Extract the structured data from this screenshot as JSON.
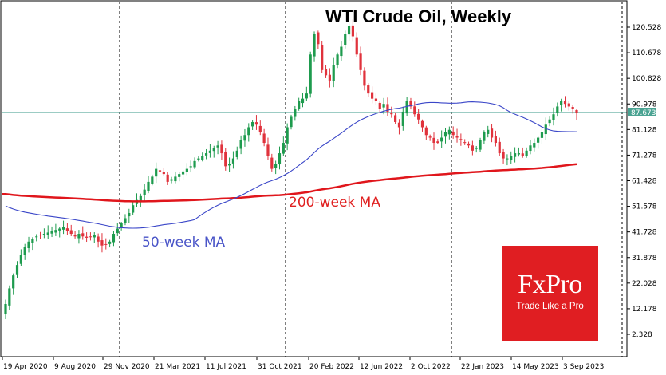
{
  "chart_data": {
    "type": "candlestick",
    "title": "WTI Crude Oil, Weekly",
    "ylim": [
      -2,
      129
    ],
    "y_ticks": [
      "120.528",
      "110.678",
      "100.828",
      "90.978",
      "81.128",
      "71.278",
      "61.428",
      "51.578",
      "41.728",
      "31.878",
      "22.028",
      "12.178",
      "2.328"
    ],
    "x_ticks": [
      "19 Apr 2020",
      "9 Aug 2020",
      "29 Nov 2020",
      "21 Mar 2021",
      "11 Jul 2021",
      "31 Oct 2021",
      "20 Feb 2022",
      "12 Jun 2022",
      "2 Oct 2022",
      "22 Jan 2023",
      "14 May 2023",
      "3 Sep 2023"
    ],
    "vertical_markers": [
      "29 Nov 2020",
      "31 Oct 2021",
      "2 Oct 2022"
    ],
    "current_price": 87.673,
    "current_price_label": "87.673",
    "price_colors": {
      "up": "#1e9b4e",
      "down": "#e0323c"
    },
    "close_series_weekly": [
      14.0,
      20.0,
      25.0,
      29.0,
      33.0,
      36.0,
      38.0,
      39.0,
      40.0,
      40.5,
      41.0,
      41.5,
      42.0,
      42.5,
      43.0,
      43.5,
      42.0,
      41.0,
      40.0,
      41.0,
      40.0,
      39.5,
      40.0,
      40.5,
      38.0,
      36.5,
      37.0,
      38.0,
      41.0,
      43.0,
      45.0,
      47.0,
      49.0,
      52.0,
      54.0,
      55.5,
      58.0,
      61.0,
      63.0,
      66.0,
      65.0,
      64.0,
      61.0,
      62.0,
      63.0,
      64.0,
      65.0,
      66.0,
      67.0,
      69.0,
      70.0,
      71.0,
      72.0,
      73.0,
      74.0,
      75.0,
      72.0,
      67.0,
      68.0,
      70.0,
      73.0,
      77.0,
      79.0,
      82.0,
      84.0,
      83.0,
      80.0,
      76.0,
      71.0,
      66.0,
      68.0,
      72.0,
      76.0,
      82.0,
      86.0,
      89.0,
      92.0,
      93.0,
      95.0,
      110.0,
      118.0,
      114.0,
      104.0,
      102.0,
      100.0,
      106.0,
      110.0,
      113.0,
      118.0,
      121.0,
      117.0,
      110.0,
      104.0,
      98.0,
      95.0,
      93.0,
      92.0,
      89.0,
      91.0,
      88.0,
      87.0,
      84.0,
      82.0,
      88.0,
      92.0,
      90.0,
      87.0,
      85.0,
      82.0,
      79.0,
      78.0,
      76.0,
      76.0,
      78.0,
      80.0,
      81.0,
      79.0,
      78.0,
      77.0,
      76.0,
      75.0,
      73.0,
      74.0,
      77.0,
      80.0,
      81.0,
      78.0,
      76.0,
      72.0,
      70.0,
      70.0,
      71.0,
      72.0,
      72.0,
      71.0,
      73.0,
      75.0,
      76.0,
      78.0,
      80.0,
      83.0,
      85.0,
      87.0,
      90.0,
      92.0,
      91.0,
      90.0,
      89.0,
      87.673
    ],
    "series": [
      {
        "name": "50-week MA",
        "color": "#3a46c8"
      },
      {
        "name": "200-week MA",
        "color": "#e0161c"
      }
    ],
    "annotations": [
      "50-week MA",
      "200-week MA"
    ],
    "grid": false,
    "price_axis": "right"
  },
  "brand": {
    "name": "FxPro",
    "tagline": "Trade Like a Pro"
  }
}
